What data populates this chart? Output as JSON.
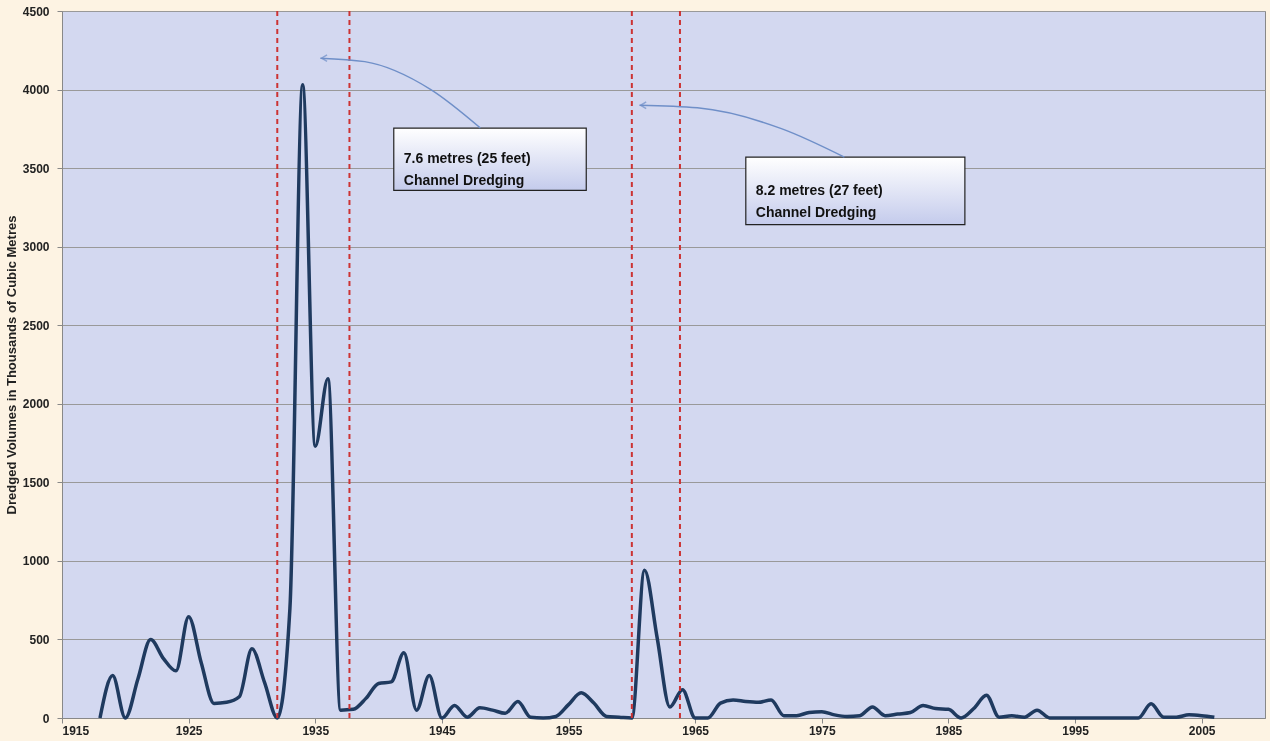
{
  "chart_data": {
    "type": "line",
    "ylabel": "Dredged Volumes in Thousands of Cubic Metres",
    "x": [
      1918,
      1919,
      1920,
      1921,
      1922,
      1923,
      1924,
      1925,
      1926,
      1927,
      1928,
      1929,
      1930,
      1931,
      1932,
      1933,
      1934,
      1935,
      1936,
      1937,
      1938,
      1939,
      1940,
      1941,
      1942,
      1943,
      1944,
      1945,
      1946,
      1947,
      1948,
      1949,
      1950,
      1951,
      1952,
      1953,
      1954,
      1955,
      1956,
      1957,
      1958,
      1959,
      1960,
      1961,
      1962,
      1963,
      1964,
      1965,
      1966,
      1967,
      1968,
      1969,
      1970,
      1971,
      1972,
      1973,
      1974,
      1975,
      1976,
      1977,
      1978,
      1979,
      1980,
      1981,
      1982,
      1983,
      1984,
      1985,
      1986,
      1987,
      1988,
      1989,
      1990,
      1991,
      1992,
      1993,
      1994,
      1995,
      1996,
      1997,
      1998,
      1999,
      2000,
      2001,
      2002,
      2003,
      2004,
      2005,
      2006
    ],
    "series": [
      {
        "color": "#1f3a5f",
        "values": [
          0,
          270,
          0,
          250,
          500,
          380,
          300,
          645,
          350,
          93,
          100,
          135,
          440,
          225,
          0,
          700,
          4030,
          1730,
          2160,
          50,
          55,
          125,
          220,
          230,
          415,
          50,
          270,
          0,
          80,
          5,
          65,
          50,
          30,
          105,
          5,
          0,
          10,
          85,
          160,
          95,
          10,
          5,
          0,
          940,
          510,
          70,
          180,
          0,
          0,
          95,
          115,
          105,
          100,
          115,
          15,
          15,
          35,
          40,
          20,
          10,
          15,
          70,
          15,
          25,
          35,
          80,
          60,
          55,
          0,
          60,
          145,
          5,
          15,
          5,
          50,
          0,
          0,
          0,
          0,
          0,
          0,
          0,
          0,
          90,
          5,
          5,
          20,
          15,
          5
        ]
      }
    ],
    "xlim": [
      1915,
      2010
    ],
    "xticks": [
      1915,
      1925,
      1935,
      1945,
      1955,
      1965,
      1975,
      1985,
      1995,
      2005
    ],
    "ylim": [
      0,
      4500
    ],
    "yticks": [
      0,
      500,
      1000,
      1500,
      2000,
      2500,
      3000,
      3500,
      4000,
      4500
    ],
    "grid": "y",
    "legend": false,
    "marker": "none",
    "line_style": "solid",
    "ref_lines": [
      {
        "axis": "x",
        "value": 1932,
        "color": "#cc3333",
        "line_style": "dashed"
      },
      {
        "axis": "x",
        "value": 1937.7,
        "color": "#cc3333",
        "line_style": "dashed"
      },
      {
        "axis": "x",
        "value": 1960,
        "color": "#cc3333",
        "line_style": "dashed"
      },
      {
        "axis": "x",
        "value": 1963.8,
        "color": "#cc3333",
        "line_style": "dashed"
      }
    ],
    "annotations": [
      "7.6 metres (25 feet)\nChannel  Dredging",
      "8.2 metres (27 feet)\nChannel Dredging"
    ]
  }
}
